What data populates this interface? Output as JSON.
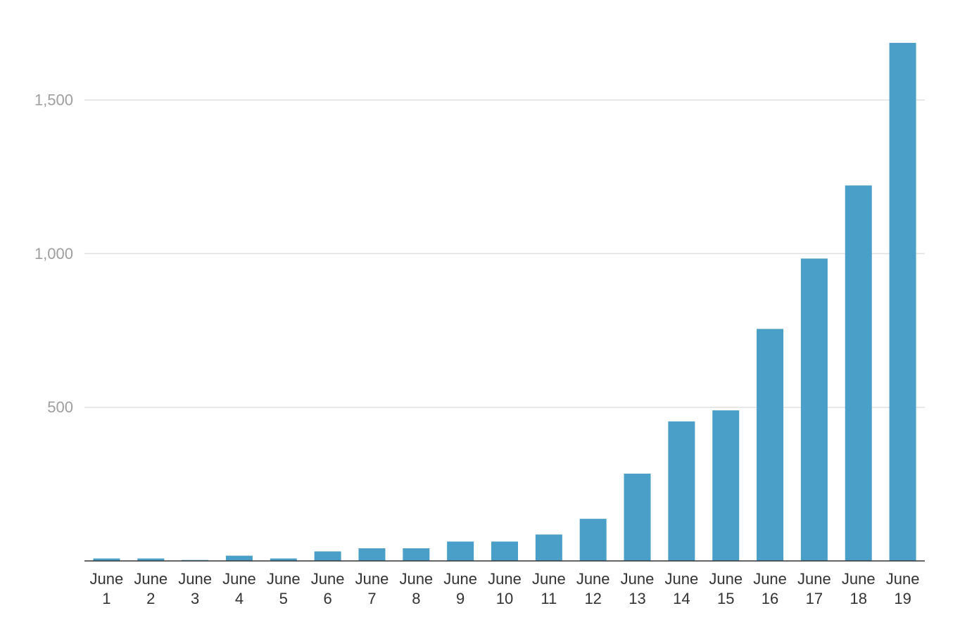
{
  "chart_data": {
    "type": "bar",
    "title": "",
    "xlabel": "",
    "ylabel": "",
    "categories": [
      [
        "June",
        "1"
      ],
      [
        "June",
        "2"
      ],
      [
        "June",
        "3"
      ],
      [
        "June",
        "4"
      ],
      [
        "June",
        "5"
      ],
      [
        "June",
        "6"
      ],
      [
        "June",
        "7"
      ],
      [
        "June",
        "8"
      ],
      [
        "June",
        "9"
      ],
      [
        "June",
        "10"
      ],
      [
        "June",
        "11"
      ],
      [
        "June",
        "12"
      ],
      [
        "June",
        "13"
      ],
      [
        "June",
        "14"
      ],
      [
        "June",
        "15"
      ],
      [
        "June",
        "16"
      ],
      [
        "June",
        "17"
      ],
      [
        "June",
        "18"
      ],
      [
        "June",
        "19"
      ]
    ],
    "values": [
      8,
      8,
      3,
      17,
      8,
      31,
      41,
      41,
      63,
      63,
      86,
      137,
      284,
      454,
      490,
      755,
      984,
      1222,
      1686
    ],
    "ylim": [
      0,
      1750
    ],
    "yticks": [
      500,
      1000,
      1500
    ],
    "ytick_labels": [
      "500",
      "1,000",
      "1,500"
    ],
    "grid": true,
    "legend": "none",
    "colors": {
      "bar": "#4a9fc8",
      "grid": "#e0e0e0",
      "axis": "#333333"
    }
  }
}
